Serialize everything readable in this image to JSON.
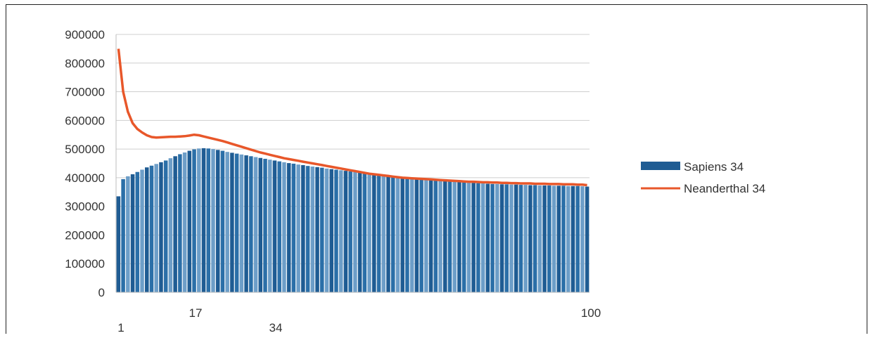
{
  "chart_data": {
    "type": "bar",
    "title": "",
    "xlabel": "",
    "ylabel": "",
    "ylim": [
      0,
      900000
    ],
    "yticks": [
      "900000",
      "800000",
      "700000",
      "600000",
      "500000",
      "400000",
      "300000",
      "200000",
      "100000",
      "0"
    ],
    "x_tick_labels": [
      {
        "x": 1,
        "label": "1"
      },
      {
        "x": 17,
        "label": "17"
      },
      {
        "x": 34,
        "label": "34"
      },
      {
        "x": 100,
        "label": "100"
      }
    ],
    "grid": true,
    "legend_position": "right",
    "x_range": [
      1,
      100
    ],
    "series": [
      {
        "name": "Sapiens 34",
        "type": "bar",
        "color": "#1f5c93",
        "values": [
          335000,
          395000,
          405000,
          412000,
          420000,
          428000,
          436000,
          442000,
          448000,
          454000,
          460000,
          468000,
          475000,
          482000,
          488000,
          494000,
          499000,
          502000,
          503000,
          502000,
          500000,
          497000,
          494000,
          490000,
          487000,
          484000,
          481000,
          478000,
          475000,
          472000,
          469000,
          466000,
          463000,
          460000,
          457000,
          454000,
          451000,
          449000,
          446000,
          444000,
          441000,
          439000,
          437000,
          435000,
          432000,
          430000,
          428000,
          426000,
          424000,
          422000,
          420000,
          418000,
          416000,
          414000,
          412000,
          410000,
          408000,
          406000,
          405000,
          403000,
          401000,
          399000,
          398000,
          396000,
          395000,
          393000,
          392000,
          390000,
          389000,
          388000,
          387000,
          386000,
          385000,
          384000,
          383000,
          382000,
          381000,
          380000,
          379000,
          378000,
          378000,
          377000,
          377000,
          376000,
          376000,
          375000,
          375000,
          374000,
          374000,
          373000,
          373000,
          373000,
          372000,
          372000,
          372000,
          371000,
          371000,
          371000,
          370000,
          369000
        ]
      },
      {
        "name": "Neanderthal 34",
        "type": "line",
        "color": "#e8572a",
        "values": [
          850000,
          700000,
          630000,
          590000,
          570000,
          558000,
          548000,
          542000,
          540000,
          541000,
          542000,
          543000,
          543000,
          544000,
          545000,
          547000,
          550000,
          548000,
          544000,
          540000,
          536000,
          532000,
          528000,
          523000,
          518000,
          513000,
          508000,
          503000,
          498000,
          493000,
          488000,
          484000,
          480000,
          476000,
          472000,
          468000,
          465000,
          462000,
          459000,
          456000,
          453000,
          450000,
          447000,
          444000,
          441000,
          438000,
          435000,
          432000,
          429000,
          426000,
          423000,
          420000,
          417000,
          414000,
          412000,
          410000,
          408000,
          406000,
          404000,
          402000,
          400000,
          399000,
          398000,
          397000,
          396000,
          395000,
          394000,
          393000,
          392000,
          391000,
          390000,
          389000,
          388000,
          387000,
          386000,
          386000,
          385000,
          384000,
          384000,
          383000,
          383000,
          382000,
          382000,
          381000,
          381000,
          380000,
          380000,
          380000,
          379000,
          379000,
          379000,
          378000,
          378000,
          378000,
          377000,
          377000,
          377000,
          376000,
          376000,
          374000
        ]
      }
    ]
  }
}
